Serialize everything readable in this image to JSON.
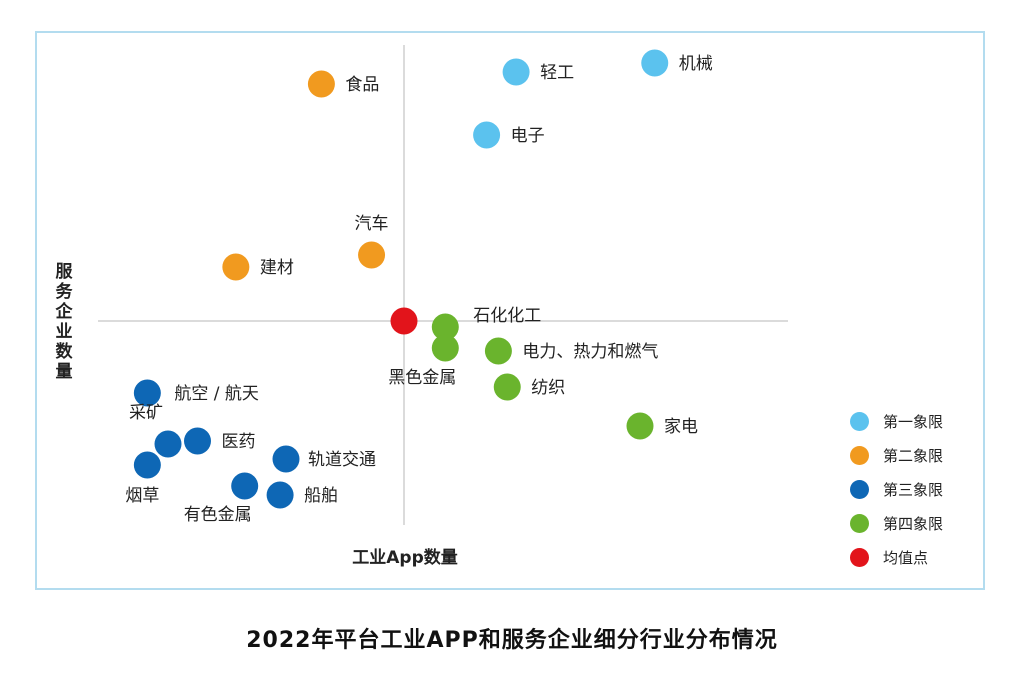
{
  "chart_data": {
    "type": "scatter",
    "title": "2022年平台工业APP和服务企业细分行业分布情况",
    "xlabel": "工业App数量",
    "ylabel": "服务企业数量",
    "grid": false,
    "legend_position": "bottom-right",
    "mean_point": [
      0,
      0
    ],
    "points": [
      {
        "label": "轻工",
        "x": 38,
        "y": 83,
        "quadrant": 1
      },
      {
        "label": "机械",
        "x": 85,
        "y": 86,
        "quadrant": 1
      },
      {
        "label": "电子",
        "x": 28,
        "y": 62,
        "quadrant": 1
      },
      {
        "label": "食品",
        "x": -28,
        "y": 79,
        "quadrant": 2
      },
      {
        "label": "汽车",
        "x": -11,
        "y": 22,
        "quadrant": 2
      },
      {
        "label": "建材",
        "x": -57,
        "y": 18,
        "quadrant": 2
      },
      {
        "label": "航空 / 航天",
        "x": -87,
        "y": -24,
        "quadrant": 3
      },
      {
        "label": "采矿",
        "x": -80,
        "y": -41,
        "quadrant": 3
      },
      {
        "label": "医药",
        "x": -70,
        "y": -40,
        "quadrant": 3
      },
      {
        "label": "烟草",
        "x": -87,
        "y": -48,
        "quadrant": 3
      },
      {
        "label": "轨道交通",
        "x": -40,
        "y": -46,
        "quadrant": 3
      },
      {
        "label": "有色金属",
        "x": -54,
        "y": -55,
        "quadrant": 3
      },
      {
        "label": "船舶",
        "x": -42,
        "y": -58,
        "quadrant": 3
      },
      {
        "label": "石化化工",
        "x": 14,
        "y": -2,
        "quadrant": 4
      },
      {
        "label": "黑色金属",
        "x": 14,
        "y": -9,
        "quadrant": 4
      },
      {
        "label": "电力、热力和燃气",
        "x": 32,
        "y": -10,
        "quadrant": 4
      },
      {
        "label": "纺织",
        "x": 35,
        "y": -22,
        "quadrant": 4
      },
      {
        "label": "家电",
        "x": 80,
        "y": -35,
        "quadrant": 4
      },
      {
        "label": "均值点",
        "x": 0,
        "y": 0,
        "quadrant": 0
      }
    ],
    "legend": [
      {
        "label": "第一象限",
        "color": "#5bc2ee"
      },
      {
        "label": "第二象限",
        "color": "#f19a1f"
      },
      {
        "label": "第三象限",
        "color": "#0e67b5"
      },
      {
        "label": "第四象限",
        "color": "#6ab42d"
      },
      {
        "label": "均值点",
        "color": "#e2141b"
      }
    ]
  }
}
